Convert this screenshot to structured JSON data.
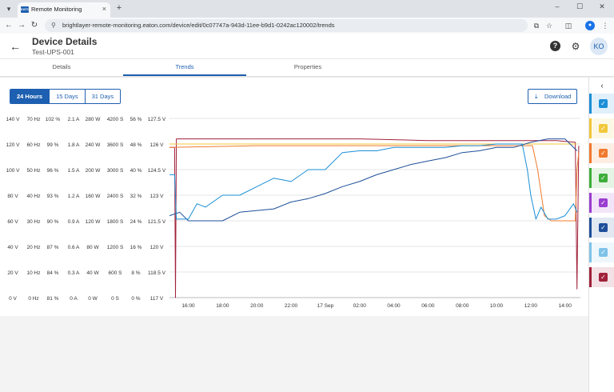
{
  "browser": {
    "tab_title": "Remote Monitoring",
    "tab_favicon": "EATON",
    "url": "brightlayer-remote-monitoring.eaton.com/device/edit/0c07747a-943d-11ee-b9d1-0242ac120002/trends",
    "new_tab_icon": "+",
    "menu_icon": "▾",
    "close_icon": "×",
    "minimize_icon": "–",
    "maximize_icon": "☐",
    "window_close_icon": "✕",
    "back_icon": "←",
    "forward_icon": "→",
    "reload_icon": "↻",
    "site_info_icon": "⚲",
    "cast_icon": "⧉",
    "bookmark_icon": "☆",
    "extensions_icon": "◫",
    "profile_icon": "●",
    "more_icon": "⋮"
  },
  "header": {
    "back_icon": "←",
    "title": "Device Details",
    "subtitle": "Test-UPS-001",
    "help_icon": "?",
    "settings_icon": "⚙",
    "avatar_initials": "KO"
  },
  "tabs": [
    {
      "label": "Details",
      "active": false
    },
    {
      "label": "Trends",
      "active": true
    },
    {
      "label": "Properties",
      "active": false
    }
  ],
  "range_buttons": [
    {
      "label": "24 Hours",
      "active": true
    },
    {
      "label": "15 Days",
      "active": false
    },
    {
      "label": "31 Days",
      "active": false
    }
  ],
  "download": {
    "icon": "⤓",
    "label": "Download"
  },
  "right_panel": {
    "collapse_icon": "‹",
    "series": [
      {
        "color": "#1b8fd6",
        "checked": true
      },
      {
        "color": "#f2c73b",
        "checked": true
      },
      {
        "color": "#f07a2e",
        "checked": true
      },
      {
        "color": "#3dae3a",
        "checked": true
      },
      {
        "color": "#9b3dd0",
        "checked": true
      },
      {
        "color": "#1e4f9a",
        "checked": true
      },
      {
        "color": "#7fc3e8",
        "checked": true
      },
      {
        "color": "#a2213a",
        "checked": true
      }
    ],
    "check_icon": "✓"
  },
  "chart_data": {
    "type": "line",
    "y_axes": [
      {
        "ticks": [
          "140 V",
          "120 V",
          "100 V",
          "80 V",
          "60 V",
          "40 V",
          "20 V",
          "0 V"
        ]
      },
      {
        "ticks": [
          "70 Hz",
          "60 Hz",
          "50 Hz",
          "40 Hz",
          "30 Hz",
          "20 Hz",
          "10 Hz",
          "0 Hz"
        ]
      },
      {
        "ticks": [
          "102 %",
          "99 %",
          "96 %",
          "93 %",
          "90 %",
          "87 %",
          "84 %",
          "81 %"
        ]
      },
      {
        "ticks": [
          "2.1 A",
          "1.8 A",
          "1.5 A",
          "1.2 A",
          "0.9 A",
          "0.6 A",
          "0.3 A",
          "0 A"
        ]
      },
      {
        "ticks": [
          "280 W",
          "240 W",
          "200 W",
          "160 W",
          "120 W",
          "80 W",
          "40 W",
          "0 W"
        ]
      },
      {
        "ticks": [
          "4200 S",
          "3600 S",
          "3000 S",
          "2400 S",
          "1800 S",
          "1200 S",
          "600 S",
          "0 S"
        ]
      },
      {
        "ticks": [
          "56 %",
          "48 %",
          "40 %",
          "32 %",
          "24 %",
          "16 %",
          "8 %",
          "0 %"
        ]
      },
      {
        "ticks": [
          "127.5 V",
          "126 V",
          "124.5 V",
          "123 V",
          "121.5 V",
          "120 V",
          "118.5 V",
          "117 V"
        ]
      }
    ],
    "x_ticks": [
      "16:00",
      "18:00",
      "20:00",
      "22:00",
      "17 Sep",
      "02:00",
      "04:00",
      "06:00",
      "08:00",
      "10:00",
      "12:00",
      "14:00"
    ],
    "x_range_hours": [
      14.9,
      38.9
    ],
    "grid": true,
    "series": [
      {
        "color": "#a2213a",
        "axis": "V",
        "points": [
          [
            14.9,
            125.8
          ],
          [
            15.2,
            125.8
          ],
          [
            15.25,
            117
          ],
          [
            15.3,
            126.3
          ],
          [
            18,
            126.3
          ],
          [
            22,
            126.3
          ],
          [
            26,
            126.3
          ],
          [
            30,
            126.2
          ],
          [
            34,
            126.2
          ],
          [
            37.5,
            126.2
          ],
          [
            38.6,
            126.1
          ],
          [
            38.7,
            117.5
          ],
          [
            38.8,
            125.9
          ]
        ]
      },
      {
        "color": "#f07a2e",
        "axis": "V",
        "points": [
          [
            14.9,
            125.8
          ],
          [
            20,
            125.9
          ],
          [
            28,
            125.9
          ],
          [
            35,
            125.9
          ],
          [
            36.1,
            125.9
          ],
          [
            36.4,
            124.5
          ],
          [
            36.8,
            121.8
          ],
          [
            37.2,
            121.5
          ],
          [
            38.6,
            121.5
          ],
          [
            38.7,
            124.5
          ],
          [
            38.8,
            125.5
          ]
        ]
      },
      {
        "color": "#f2c73b",
        "axis": "V",
        "points": [
          [
            14.9,
            126
          ],
          [
            20,
            126
          ],
          [
            28,
            126
          ],
          [
            35,
            126
          ],
          [
            37,
            126
          ],
          [
            38.7,
            126
          ]
        ]
      },
      {
        "color": "#1e4f9a",
        "axis": "V",
        "points": [
          [
            14.9,
            121.8
          ],
          [
            15.5,
            122
          ],
          [
            16,
            121.5
          ],
          [
            18,
            121.5
          ],
          [
            19,
            122
          ],
          [
            21,
            122.2
          ],
          [
            22,
            122.6
          ],
          [
            23,
            122.8
          ],
          [
            24,
            123.1
          ],
          [
            25,
            123.5
          ],
          [
            26,
            123.8
          ],
          [
            27,
            124.2
          ],
          [
            28,
            124.5
          ],
          [
            29,
            124.8
          ],
          [
            30,
            125
          ],
          [
            31,
            125.2
          ],
          [
            32,
            125.5
          ],
          [
            33,
            125.6
          ],
          [
            34,
            125.8
          ],
          [
            35,
            125.8
          ],
          [
            36,
            126.1
          ],
          [
            37,
            126.3
          ],
          [
            38,
            126.3
          ],
          [
            38.4,
            125.9
          ],
          [
            38.7,
            125.6
          ]
        ]
      },
      {
        "color": "#1b8fd6",
        "axis": "V",
        "points": [
          [
            14.9,
            124.2
          ],
          [
            15.2,
            124.2
          ],
          [
            15.3,
            121.6
          ],
          [
            16,
            121.6
          ],
          [
            16.5,
            122.5
          ],
          [
            17,
            122.3
          ],
          [
            18,
            123
          ],
          [
            19,
            123
          ],
          [
            20,
            123.5
          ],
          [
            21,
            124
          ],
          [
            22,
            123.8
          ],
          [
            23,
            124.5
          ],
          [
            24,
            124.5
          ],
          [
            25,
            125.5
          ],
          [
            26,
            125.6
          ],
          [
            27,
            125.6
          ],
          [
            28,
            125.8
          ],
          [
            29,
            125.8
          ],
          [
            30,
            125.8
          ],
          [
            31,
            125.8
          ],
          [
            32,
            125.9
          ],
          [
            33,
            125.9
          ],
          [
            34,
            126
          ],
          [
            35,
            126
          ],
          [
            35.5,
            126
          ],
          [
            35.8,
            124.5
          ],
          [
            36,
            123
          ],
          [
            36.3,
            121.6
          ],
          [
            36.6,
            122.3
          ],
          [
            37,
            121.6
          ],
          [
            37.5,
            121.6
          ],
          [
            38,
            121.8
          ],
          [
            38.5,
            122.5
          ],
          [
            38.7,
            122
          ]
        ]
      }
    ]
  }
}
